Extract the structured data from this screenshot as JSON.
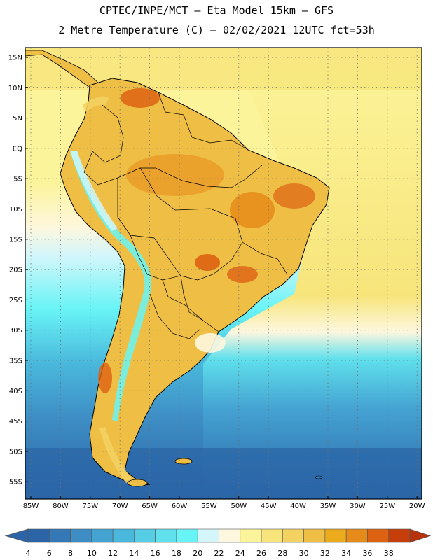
{
  "header": {
    "line1": "CPTEC/INPE/MCT –  Eta Model 15km – GFS",
    "line2": "2 Metre Temperature (C) – 02/02/2021 12UTC fct=53h"
  },
  "map": {
    "lat_labels": [
      "15N",
      "10N",
      "5N",
      "EQ",
      "5S",
      "10S",
      "15S",
      "20S",
      "25S",
      "30S",
      "35S",
      "40S",
      "45S",
      "50S",
      "55S"
    ],
    "lon_labels": [
      "85W",
      "80W",
      "75W",
      "70W",
      "65W",
      "60W",
      "55W",
      "50W",
      "45W",
      "40W",
      "35W",
      "30W",
      "25W",
      "20W"
    ]
  },
  "colorbar": {
    "labels": [
      "4",
      "6",
      "8",
      "10",
      "12",
      "14",
      "16",
      "18",
      "20",
      "22",
      "24",
      "26",
      "28",
      "30",
      "32",
      "34",
      "36",
      "38"
    ],
    "colors": [
      "#2b65a7",
      "#3478b6",
      "#3e8ec5",
      "#45a3d2",
      "#4ab8dc",
      "#55cde4",
      "#5fe0ec",
      "#68f4f6",
      "#d4f6fa",
      "#fdf7df",
      "#fcf49b",
      "#f7e57b",
      "#f3d261",
      "#efbf45",
      "#ecaa1d",
      "#e68a1a",
      "#dd6212",
      "#c63e0a"
    ],
    "left_arrow_color": "#2b65a7",
    "right_arrow_color": "#b8330b"
  }
}
